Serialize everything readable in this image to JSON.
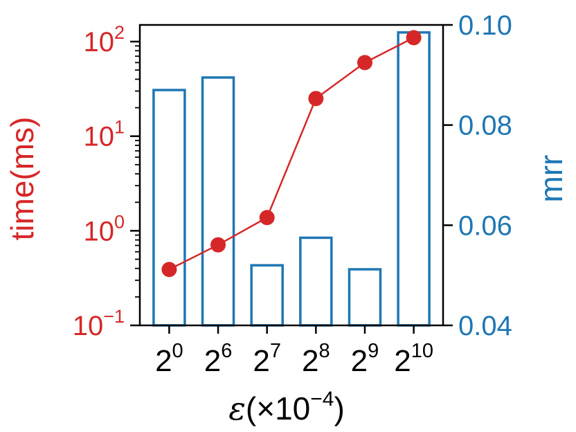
{
  "chart_data": {
    "type": "bar",
    "categories": [
      "2^0",
      "2^6",
      "2^7",
      "2^8",
      "2^9",
      "2^10"
    ],
    "x_tick_labels": [
      {
        "base": "2",
        "exp": "0"
      },
      {
        "base": "2",
        "exp": "6"
      },
      {
        "base": "2",
        "exp": "7"
      },
      {
        "base": "2",
        "exp": "8"
      },
      {
        "base": "2",
        "exp": "9"
      },
      {
        "base": "2",
        "exp": "10"
      }
    ],
    "xlabel": {
      "symbol": "ε",
      "prefix": "(×10",
      "exp": "−4",
      "suffix": ")"
    },
    "series": [
      {
        "type": "line",
        "axis": "left",
        "values": [
          0.39,
          0.71,
          1.38,
          25,
          60,
          110
        ],
        "color": "#d62728"
      },
      {
        "type": "bar",
        "axis": "right",
        "values": [
          0.087,
          0.0895,
          0.052,
          0.0575,
          0.0512,
          0.0985
        ],
        "color": "#1f77b4"
      }
    ],
    "left_axis": {
      "label": "time(ms)",
      "scale": "log",
      "ylim": [
        0.1,
        150
      ],
      "tick_labels": [
        {
          "value": 0.1,
          "base": "10",
          "exp": "−1"
        },
        {
          "value": 1,
          "base": "10",
          "exp": "0"
        },
        {
          "value": 10,
          "base": "10",
          "exp": "1"
        },
        {
          "value": 100,
          "base": "10",
          "exp": "2"
        }
      ],
      "color": "#d62728"
    },
    "right_axis": {
      "label": "mrr",
      "scale": "linear",
      "ylim": [
        0.04,
        0.1
      ],
      "tick_labels": [
        "0.04",
        "0.06",
        "0.08",
        "0.10"
      ],
      "ticks": [
        0.04,
        0.06,
        0.08,
        0.1
      ],
      "color": "#1f77b4"
    },
    "grid": false,
    "legend": "none"
  }
}
